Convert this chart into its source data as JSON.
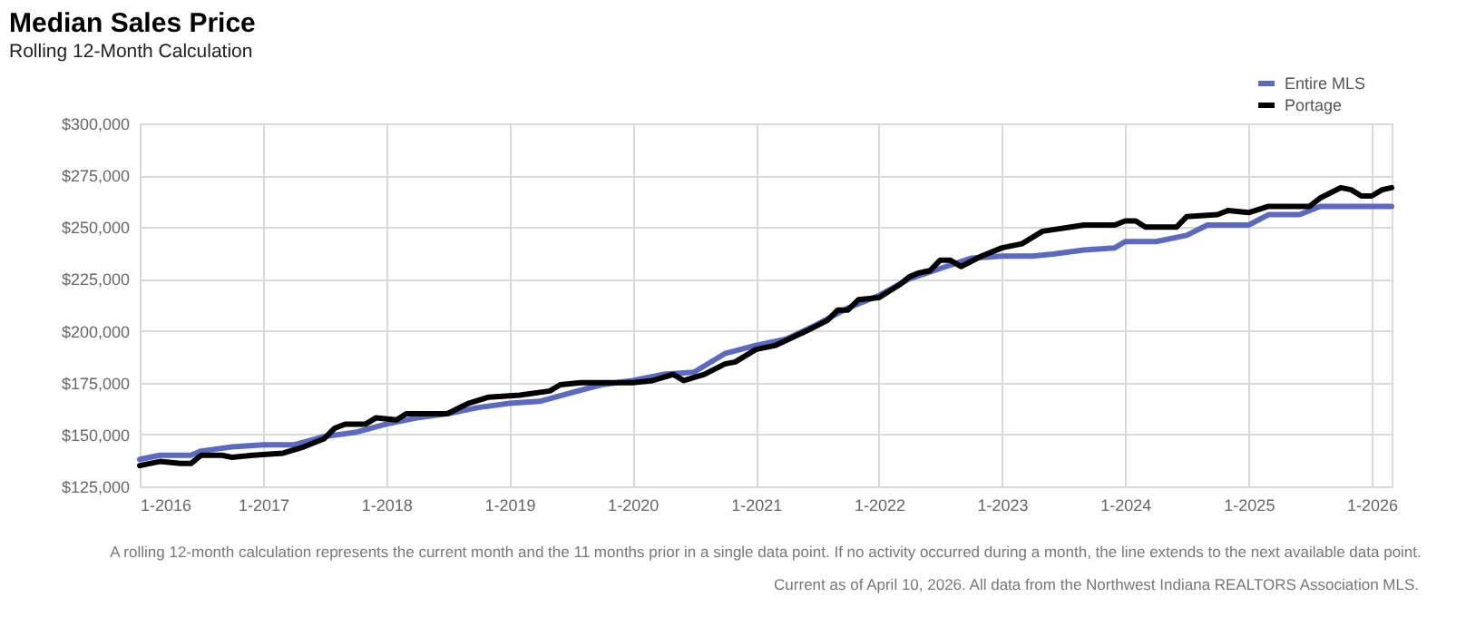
{
  "chart_data": {
    "type": "line",
    "title": "Median Sales Price",
    "subtitle": "Rolling 12-Month Calculation",
    "series": [
      {
        "name": "Entire MLS",
        "color": "#5b6abf",
        "x": [
          "2016-01",
          "2016-03",
          "2016-06",
          "2016-07",
          "2016-10",
          "2017-01",
          "2017-04",
          "2017-07",
          "2017-10",
          "2018-01",
          "2018-04",
          "2018-07",
          "2018-10",
          "2019-01",
          "2019-04",
          "2019-07",
          "2019-10",
          "2020-01",
          "2020-04",
          "2020-07",
          "2020-10",
          "2021-01",
          "2021-04",
          "2021-07",
          "2021-10",
          "2022-01",
          "2022-04",
          "2022-07",
          "2022-10",
          "2023-01",
          "2023-04",
          "2023-06",
          "2023-09",
          "2023-12",
          "2024-01",
          "2024-04",
          "2024-07",
          "2024-09",
          "2025-01",
          "2025-03",
          "2025-06",
          "2025-08",
          "2026-03"
        ],
        "values": [
          138000,
          140000,
          140000,
          142000,
          144000,
          145000,
          145000,
          149000,
          151000,
          155000,
          158000,
          160000,
          163000,
          165000,
          166000,
          170000,
          174000,
          176000,
          179000,
          180000,
          189000,
          193000,
          196000,
          203000,
          211000,
          217000,
          225000,
          230000,
          235000,
          236000,
          236000,
          237000,
          239000,
          240000,
          243000,
          243000,
          246000,
          251000,
          251000,
          256000,
          256000,
          260000,
          260000
        ]
      },
      {
        "name": "Portage",
        "color": "#000000",
        "x": [
          "2016-01",
          "2016-03",
          "2016-05",
          "2016-06",
          "2016-07",
          "2016-09",
          "2016-10",
          "2016-12",
          "2017-03",
          "2017-05",
          "2017-07",
          "2017-08",
          "2017-09",
          "2017-11",
          "2017-12",
          "2018-02",
          "2018-03",
          "2018-07",
          "2018-09",
          "2018-11",
          "2019-02",
          "2019-05",
          "2019-06",
          "2019-08",
          "2020-01",
          "2020-03",
          "2020-05",
          "2020-06",
          "2020-08",
          "2020-10",
          "2020-11",
          "2021-01",
          "2021-03",
          "2021-06",
          "2021-08",
          "2021-09",
          "2021-10",
          "2021-11",
          "2022-01",
          "2022-03",
          "2022-04",
          "2022-05",
          "2022-06",
          "2022-07",
          "2022-08",
          "2022-09",
          "2022-11",
          "2023-01",
          "2023-03",
          "2023-05",
          "2023-09",
          "2023-12",
          "2024-01",
          "2024-02",
          "2024-03",
          "2024-06",
          "2024-07",
          "2024-10",
          "2024-11",
          "2025-01",
          "2025-03",
          "2025-07",
          "2025-08",
          "2025-10",
          "2025-11",
          "2025-12",
          "2026-01",
          "2026-02",
          "2026-03"
        ],
        "values": [
          135000,
          137000,
          136000,
          136000,
          140000,
          140000,
          139000,
          140000,
          141000,
          144000,
          148000,
          153000,
          155000,
          155000,
          158000,
          157000,
          160000,
          160000,
          165000,
          168000,
          169000,
          171000,
          174000,
          175000,
          175000,
          176000,
          179000,
          176000,
          179000,
          184000,
          185000,
          191000,
          193000,
          200000,
          205000,
          210000,
          210000,
          215000,
          216000,
          222000,
          226000,
          228000,
          229000,
          234000,
          234000,
          231000,
          236000,
          240000,
          242000,
          248000,
          251000,
          251000,
          253000,
          253000,
          250000,
          250000,
          255000,
          256000,
          258000,
          257000,
          260000,
          260000,
          264000,
          269000,
          268000,
          265000,
          265000,
          268000,
          269000
        ]
      }
    ],
    "xlim": [
      "2016-01",
      "2026-03"
    ],
    "xticks": [
      {
        "value": "2016-01",
        "label": "1-2016"
      },
      {
        "value": "2017-01",
        "label": "1-2017"
      },
      {
        "value": "2018-01",
        "label": "1-2018"
      },
      {
        "value": "2019-01",
        "label": "1-2019"
      },
      {
        "value": "2020-01",
        "label": "1-2020"
      },
      {
        "value": "2021-01",
        "label": "1-2021"
      },
      {
        "value": "2022-01",
        "label": "1-2022"
      },
      {
        "value": "2023-01",
        "label": "1-2023"
      },
      {
        "value": "2024-01",
        "label": "1-2024"
      },
      {
        "value": "2025-01",
        "label": "1-2025"
      },
      {
        "value": "2026-01",
        "label": "1-2026"
      }
    ],
    "ylim": [
      125000,
      300000
    ],
    "yticks": [
      {
        "value": 125000,
        "label": "$125,000"
      },
      {
        "value": 150000,
        "label": "$150,000"
      },
      {
        "value": 175000,
        "label": "$175,000"
      },
      {
        "value": 200000,
        "label": "$200,000"
      },
      {
        "value": 225000,
        "label": "$225,000"
      },
      {
        "value": 250000,
        "label": "$250,000"
      },
      {
        "value": 275000,
        "label": "$275,000"
      },
      {
        "value": 300000,
        "label": "$300,000"
      }
    ],
    "grid": true,
    "legend": "top right",
    "marker": "none",
    "line_style": "solid",
    "annotations": [
      "A rolling 12-month calculation represents the current month and the 11 months prior in a single data point. If no activity occurred during a month, the line extends to the next available data point.",
      "Current as of April 10, 2026. All data from the Northwest Indiana REALTORS Association MLS."
    ]
  }
}
